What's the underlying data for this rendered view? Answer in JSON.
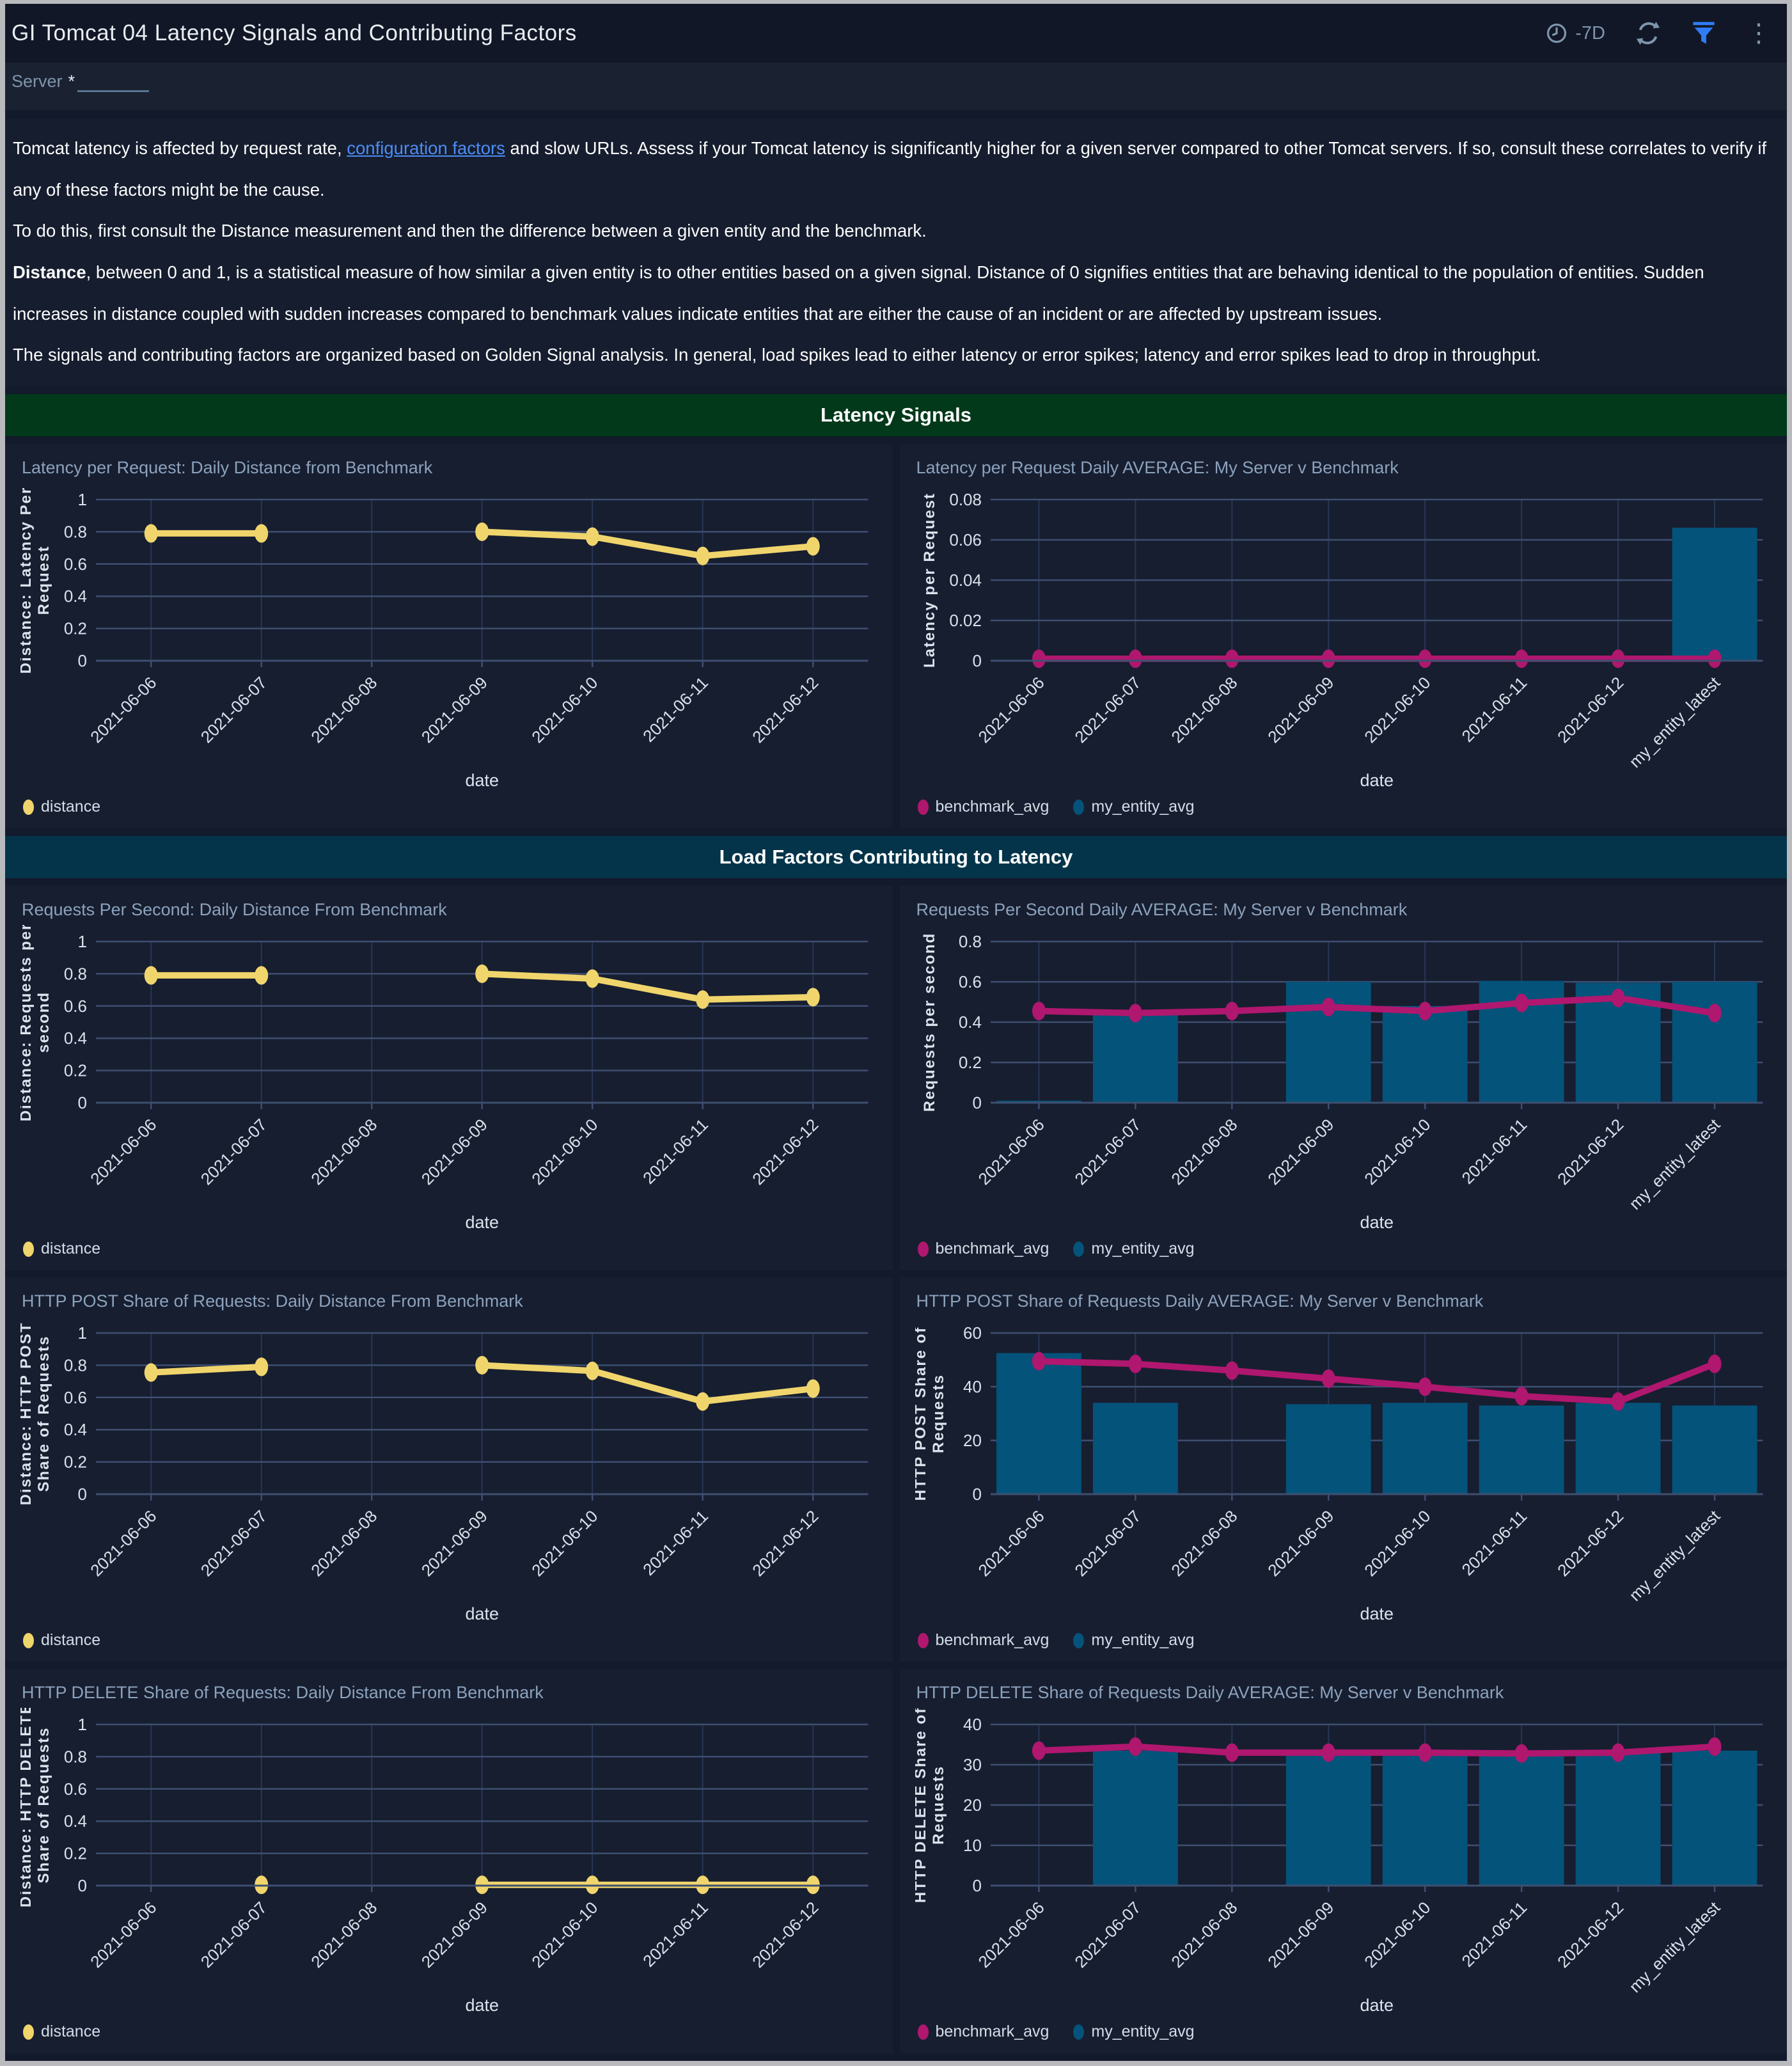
{
  "header": {
    "title": "GI Tomcat 04 Latency Signals and Contributing Factors",
    "time_range": "-7D",
    "icons": [
      "clock-icon",
      "refresh-icon",
      "filter-icon",
      "more-options-icon"
    ]
  },
  "filters": {
    "label": "Server",
    "required_marker": "*",
    "value": ""
  },
  "description": {
    "p1_pre_link": "Tomcat latency is affected by request rate, ",
    "p1_link": "configuration factors",
    "p1_post_link": " and slow URLs. Assess if your Tomcat latency is significantly higher for a given server compared to other Tomcat servers. If so, consult these correlates to verify if any of these factors might be the cause.",
    "p2": "To do this, first consult the Distance measurement and then the difference between a given entity and the benchmark.",
    "p3_bold": "Distance",
    "p3_rest": ", between 0 and 1, is a statistical measure of how similar a given entity is to other entities based on a given signal. Distance of 0 signifies entities that are behaving identical to the population of entities. Sudden increases in distance coupled with sudden increases compared to benchmark values indicate entities that are either the cause of an incident or are affected by upstream issues.",
    "p4": "The signals and contributing factors are organized based on Golden Signal analysis. In general, load spikes lead to either latency or error spikes; latency and error spikes lead to drop in throughput."
  },
  "sections": [
    {
      "title": "Latency Signals",
      "color": "#02391a"
    },
    {
      "title": "Load Factors Contributing to Latency",
      "color": "#04344a"
    }
  ],
  "colors": {
    "distance_series": "#f0d56c",
    "benchmark_series": "#b0176f",
    "entity_series": "#04537b",
    "link": "#4c8df6",
    "filter_icon": "#2f7df6"
  },
  "chart_data": [
    {
      "type": "line",
      "title": "Latency per Request: Daily Distance from Benchmark",
      "xlabel": "date",
      "ylabel_lines": [
        "Distance: Latency Per",
        "Request"
      ],
      "ylim": [
        0,
        1
      ],
      "yticks": [
        0,
        0.2,
        0.4,
        0.6,
        0.8,
        1
      ],
      "categories": [
        "2021-06-06",
        "2021-06-07",
        "2021-06-08",
        "2021-06-09",
        "2021-06-10",
        "2021-06-11",
        "2021-06-12"
      ],
      "series": [
        {
          "name": "distance",
          "type": "line",
          "color": "#f0d56c",
          "values": [
            0.79,
            0.79,
            null,
            0.8,
            0.77,
            0.65,
            0.71
          ]
        }
      ]
    },
    {
      "type": "bar",
      "title": "Latency per Request Daily AVERAGE: My Server v Benchmark",
      "xlabel": "date",
      "ylabel_lines": [
        "Latency per Request"
      ],
      "ylim": [
        0,
        0.08
      ],
      "yticks": [
        0,
        0.02,
        0.04,
        0.06,
        0.08
      ],
      "categories": [
        "2021-06-06",
        "2021-06-07",
        "2021-06-08",
        "2021-06-09",
        "2021-06-10",
        "2021-06-11",
        "2021-06-12",
        "my_entity_latest"
      ],
      "series": [
        {
          "name": "benchmark_avg",
          "type": "line",
          "color": "#b0176f",
          "values": [
            0.001,
            0.001,
            0.001,
            0.001,
            0.001,
            0.001,
            0.001,
            0.001
          ]
        },
        {
          "name": "my_entity_avg",
          "type": "bar",
          "color": "#04537b",
          "values": [
            0,
            0,
            0,
            0,
            0,
            0,
            0,
            0.066
          ]
        }
      ]
    },
    {
      "type": "line",
      "title": "Requests Per Second: Daily Distance From Benchmark",
      "xlabel": "date",
      "ylabel_lines": [
        "Distance: Requests per",
        "second"
      ],
      "ylim": [
        0,
        1
      ],
      "yticks": [
        0,
        0.2,
        0.4,
        0.6,
        0.8,
        1
      ],
      "categories": [
        "2021-06-06",
        "2021-06-07",
        "2021-06-08",
        "2021-06-09",
        "2021-06-10",
        "2021-06-11",
        "2021-06-12"
      ],
      "series": [
        {
          "name": "distance",
          "type": "line",
          "color": "#f0d56c",
          "values": [
            0.79,
            0.79,
            null,
            0.8,
            0.77,
            0.64,
            0.655
          ]
        }
      ]
    },
    {
      "type": "bar",
      "title": "Requests Per Second Daily AVERAGE: My Server v Benchmark",
      "xlabel": "date",
      "ylabel_lines": [
        "Requests per second"
      ],
      "ylim": [
        0,
        0.8
      ],
      "yticks": [
        0,
        0.2,
        0.4,
        0.6,
        0.8
      ],
      "categories": [
        "2021-06-06",
        "2021-06-07",
        "2021-06-08",
        "2021-06-09",
        "2021-06-10",
        "2021-06-11",
        "2021-06-12",
        "my_entity_latest"
      ],
      "series": [
        {
          "name": "benchmark_avg",
          "type": "line",
          "color": "#b0176f",
          "values": [
            0.455,
            0.445,
            0.455,
            0.475,
            0.455,
            0.495,
            0.52,
            0.445
          ]
        },
        {
          "name": "my_entity_avg",
          "type": "bar",
          "color": "#04537b",
          "values": [
            0.01,
            0.44,
            0,
            0.6,
            0.48,
            0.605,
            0.595,
            0.6
          ]
        }
      ]
    },
    {
      "type": "line",
      "title": "HTTP POST Share of Requests: Daily Distance From Benchmark",
      "xlabel": "date",
      "ylabel_lines": [
        "Distance: HTTP POST",
        "Share of Requests"
      ],
      "ylim": [
        0,
        1
      ],
      "yticks": [
        0,
        0.2,
        0.4,
        0.6,
        0.8,
        1
      ],
      "categories": [
        "2021-06-06",
        "2021-06-07",
        "2021-06-08",
        "2021-06-09",
        "2021-06-10",
        "2021-06-11",
        "2021-06-12"
      ],
      "series": [
        {
          "name": "distance",
          "type": "line",
          "color": "#f0d56c",
          "values": [
            0.755,
            0.79,
            null,
            0.8,
            0.765,
            0.575,
            0.655
          ]
        }
      ]
    },
    {
      "type": "bar",
      "title": "HTTP POST Share of Requests Daily AVERAGE: My Server v Benchmark",
      "xlabel": "date",
      "ylabel_lines": [
        "HTTP POST Share of",
        "Requests"
      ],
      "ylim": [
        0,
        60
      ],
      "yticks": [
        0,
        20,
        40,
        60
      ],
      "categories": [
        "2021-06-06",
        "2021-06-07",
        "2021-06-08",
        "2021-06-09",
        "2021-06-10",
        "2021-06-11",
        "2021-06-12",
        "my_entity_latest"
      ],
      "series": [
        {
          "name": "benchmark_avg",
          "type": "line",
          "color": "#b0176f",
          "values": [
            49.5,
            48.5,
            46,
            43,
            40,
            36.5,
            34.5,
            48.5
          ]
        },
        {
          "name": "my_entity_avg",
          "type": "bar",
          "color": "#04537b",
          "values": [
            52.5,
            34,
            0,
            33.5,
            34,
            33,
            34,
            33
          ]
        }
      ]
    },
    {
      "type": "line",
      "title": "HTTP DELETE Share of Requests: Daily Distance From Benchmark",
      "xlabel": "date",
      "ylabel_lines": [
        "Distance: HTTP DELETE",
        "Share of Requests"
      ],
      "ylim": [
        0,
        1
      ],
      "yticks": [
        0,
        0.2,
        0.4,
        0.6,
        0.8,
        1
      ],
      "categories": [
        "2021-06-06",
        "2021-06-07",
        "2021-06-08",
        "2021-06-09",
        "2021-06-10",
        "2021-06-11",
        "2021-06-12"
      ],
      "series": [
        {
          "name": "distance",
          "type": "line",
          "color": "#f0d56c",
          "values": [
            null,
            0.005,
            null,
            0.005,
            0.005,
            0.005,
            0.005
          ]
        }
      ]
    },
    {
      "type": "bar",
      "title": "HTTP DELETE Share of Requests Daily AVERAGE: My Server v Benchmark",
      "xlabel": "date",
      "ylabel_lines": [
        "HTTP DELETE Share of",
        "Requests"
      ],
      "ylim": [
        0,
        40
      ],
      "yticks": [
        0,
        10,
        20,
        30,
        40
      ],
      "categories": [
        "2021-06-06",
        "2021-06-07",
        "2021-06-08",
        "2021-06-09",
        "2021-06-10",
        "2021-06-11",
        "2021-06-12",
        "my_entity_latest"
      ],
      "series": [
        {
          "name": "benchmark_avg",
          "type": "line",
          "color": "#b0176f",
          "values": [
            33.5,
            34.5,
            33,
            33,
            33,
            32.8,
            33,
            34.5
          ]
        },
        {
          "name": "my_entity_avg",
          "type": "bar",
          "color": "#04537b",
          "values": [
            0,
            33.5,
            0,
            33,
            33,
            32.5,
            33,
            33.5
          ]
        }
      ]
    }
  ]
}
